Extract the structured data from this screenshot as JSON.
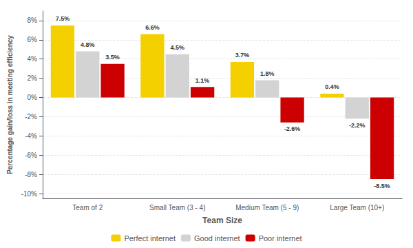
{
  "chart_data": {
    "type": "bar",
    "categories": [
      "Team of 2",
      "Small Team (3 - 4)",
      "Medium Team (5 - 9)",
      "Large Team (10+)"
    ],
    "series": [
      {
        "name": "Perfect internet",
        "color": "#F5D000",
        "values": [
          7.5,
          6.6,
          3.7,
          0.4
        ],
        "value_labels": [
          "7.5%",
          "6.6%",
          "3.7%",
          "0.4%"
        ]
      },
      {
        "name": "Good internet",
        "color": "#D3D3D3",
        "values": [
          4.8,
          4.5,
          1.8,
          -2.2
        ],
        "value_labels": [
          "4.8%",
          "4.5%",
          "1.8%",
          "-2.2%"
        ]
      },
      {
        "name": "Poor internet",
        "color": "#CC0000",
        "values": [
          3.5,
          1.1,
          -2.6,
          -8.5
        ],
        "value_labels": [
          "3.5%",
          "1.1%",
          "-2.6%",
          "-8.5%"
        ]
      }
    ],
    "xlabel": "Team Size",
    "ylabel": "Percentage gain/loss in meeting efficiency",
    "ylim": [
      -10.5,
      9.0
    ],
    "yticks": [
      {
        "value": -10,
        "label": "-10%"
      },
      {
        "value": -8,
        "label": "-8%"
      },
      {
        "value": -6,
        "label": "-6%"
      },
      {
        "value": -4,
        "label": "-4%"
      },
      {
        "value": -2,
        "label": "-2%"
      },
      {
        "value": 0,
        "label": "0%"
      },
      {
        "value": 2,
        "label": "2%"
      },
      {
        "value": 4,
        "label": "4%"
      },
      {
        "value": 6,
        "label": "6%"
      },
      {
        "value": 8,
        "label": "8%"
      }
    ],
    "grid": true,
    "legend": "bottom",
    "data_labels": true
  }
}
